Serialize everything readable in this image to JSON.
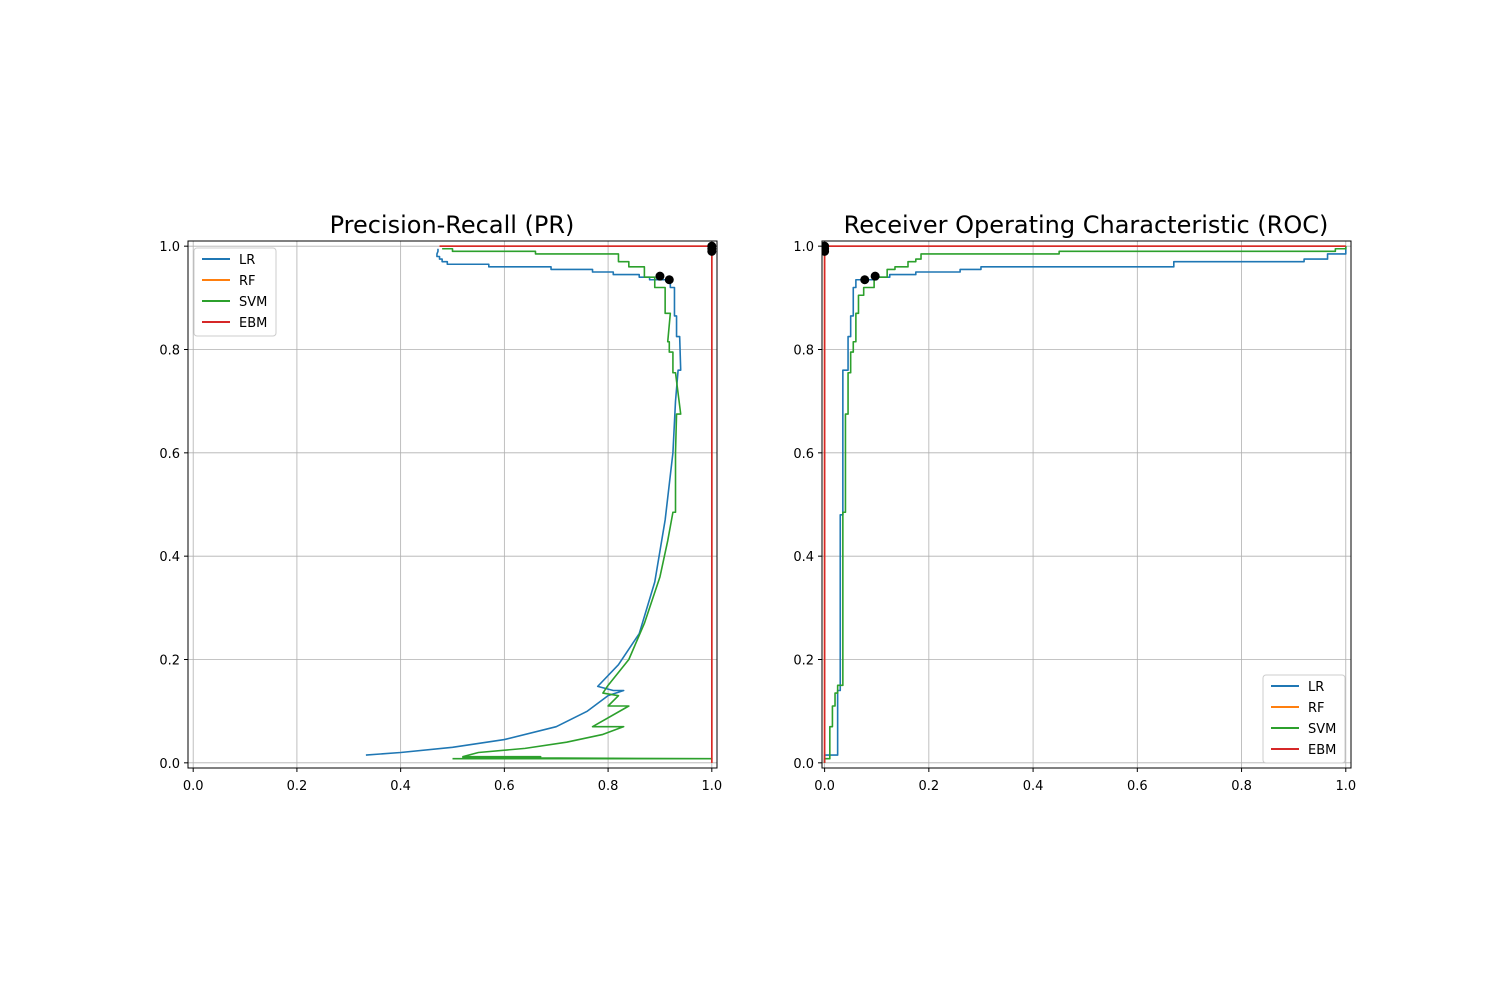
{
  "colors": {
    "LR": "#1f77b4",
    "RF": "#ff7f0e",
    "SVM": "#2ca02c",
    "EBM": "#d62728",
    "grid": "#b0b0b0",
    "marker": "#000000"
  },
  "chart_data": [
    {
      "type": "line",
      "title": "Precision-Recall (PR)",
      "xlabel": "",
      "ylabel": "",
      "xlim": [
        -0.01,
        1.01
      ],
      "ylim": [
        -0.01,
        1.01
      ],
      "xticks": [
        "0.0",
        "0.2",
        "0.4",
        "0.6",
        "0.8",
        "1.0"
      ],
      "yticks": [
        "0.0",
        "0.2",
        "0.4",
        "0.6",
        "0.8",
        "1.0"
      ],
      "grid": true,
      "legend": {
        "position": "top-left",
        "entries": [
          "LR",
          "RF",
          "SVM",
          "EBM"
        ]
      },
      "series": [
        {
          "name": "LR",
          "points": [
            [
              0.333,
              0.015
            ],
            [
              0.4,
              0.02
            ],
            [
              0.5,
              0.03
            ],
            [
              0.6,
              0.045
            ],
            [
              0.7,
              0.07
            ],
            [
              0.76,
              0.1
            ],
            [
              0.8,
              0.13
            ],
            [
              0.83,
              0.14
            ],
            [
              0.81,
              0.14
            ],
            [
              0.78,
              0.148
            ],
            [
              0.82,
              0.19
            ],
            [
              0.86,
              0.25
            ],
            [
              0.89,
              0.35
            ],
            [
              0.91,
              0.47
            ],
            [
              0.925,
              0.6
            ],
            [
              0.93,
              0.7
            ],
            [
              0.935,
              0.76
            ],
            [
              0.94,
              0.76
            ],
            [
              0.938,
              0.825
            ],
            [
              0.932,
              0.825
            ],
            [
              0.932,
              0.865
            ],
            [
              0.928,
              0.865
            ],
            [
              0.928,
              0.92
            ],
            [
              0.92,
              0.92
            ],
            [
              0.92,
              0.935
            ],
            [
              0.88,
              0.935
            ],
            [
              0.88,
              0.94
            ],
            [
              0.86,
              0.94
            ],
            [
              0.86,
              0.945
            ],
            [
              0.81,
              0.945
            ],
            [
              0.81,
              0.95
            ],
            [
              0.77,
              0.95
            ],
            [
              0.77,
              0.955
            ],
            [
              0.69,
              0.955
            ],
            [
              0.69,
              0.96
            ],
            [
              0.57,
              0.96
            ],
            [
              0.57,
              0.965
            ],
            [
              0.49,
              0.965
            ],
            [
              0.49,
              0.97
            ],
            [
              0.48,
              0.97
            ],
            [
              0.48,
              0.975
            ],
            [
              0.475,
              0.975
            ],
            [
              0.475,
              0.98
            ],
            [
              0.47,
              0.98
            ],
            [
              0.47,
              0.985
            ],
            [
              0.472,
              0.99
            ],
            [
              0.472,
              0.995
            ]
          ]
        },
        {
          "name": "RF",
          "points": [
            [
              0.475,
              1.0
            ],
            [
              1.0,
              1.0
            ],
            [
              1.0,
              0.0
            ]
          ]
        },
        {
          "name": "SVM",
          "points": [
            [
              0.5,
              0.008
            ],
            [
              1.0,
              0.008
            ],
            [
              0.52,
              0.01
            ],
            [
              0.67,
              0.012
            ],
            [
              0.52,
              0.012
            ],
            [
              0.55,
              0.02
            ],
            [
              0.64,
              0.028
            ],
            [
              0.72,
              0.04
            ],
            [
              0.79,
              0.055
            ],
            [
              0.83,
              0.07
            ],
            [
              0.77,
              0.07
            ],
            [
              0.84,
              0.11
            ],
            [
              0.8,
              0.11
            ],
            [
              0.82,
              0.13
            ],
            [
              0.79,
              0.135
            ],
            [
              0.8,
              0.15
            ],
            [
              0.84,
              0.2
            ],
            [
              0.87,
              0.27
            ],
            [
              0.9,
              0.36
            ],
            [
              0.915,
              0.43
            ],
            [
              0.925,
              0.485
            ],
            [
              0.93,
              0.485
            ],
            [
              0.93,
              0.6
            ],
            [
              0.932,
              0.675
            ],
            [
              0.94,
              0.675
            ],
            [
              0.93,
              0.755
            ],
            [
              0.925,
              0.755
            ],
            [
              0.925,
              0.795
            ],
            [
              0.918,
              0.795
            ],
            [
              0.918,
              0.815
            ],
            [
              0.915,
              0.815
            ],
            [
              0.92,
              0.87
            ],
            [
              0.91,
              0.87
            ],
            [
              0.91,
              0.92
            ],
            [
              0.89,
              0.92
            ],
            [
              0.89,
              0.94
            ],
            [
              0.87,
              0.94
            ],
            [
              0.87,
              0.96
            ],
            [
              0.84,
              0.96
            ],
            [
              0.84,
              0.97
            ],
            [
              0.82,
              0.97
            ],
            [
              0.82,
              0.985
            ],
            [
              0.66,
              0.985
            ],
            [
              0.66,
              0.99
            ],
            [
              0.5,
              0.99
            ],
            [
              0.5,
              0.995
            ],
            [
              0.48,
              0.995
            ]
          ]
        },
        {
          "name": "EBM",
          "points": [
            [
              0.475,
              1.0
            ],
            [
              1.0,
              1.0
            ],
            [
              1.0,
              0.0
            ]
          ]
        }
      ],
      "markers": [
        [
          0.9,
          0.942
        ],
        [
          0.918,
          0.935
        ],
        [
          1.0,
          1.0
        ],
        [
          1.0,
          0.995
        ],
        [
          1.0,
          0.99
        ]
      ]
    },
    {
      "type": "line",
      "title": "Receiver Operating Characteristic (ROC)",
      "xlabel": "",
      "ylabel": "",
      "xlim": [
        -0.005,
        1.01
      ],
      "ylim": [
        -0.01,
        1.01
      ],
      "xticks": [
        "0.0",
        "0.2",
        "0.4",
        "0.6",
        "0.8",
        "1.0"
      ],
      "yticks": [
        "0.0",
        "0.2",
        "0.4",
        "0.6",
        "0.8",
        "1.0"
      ],
      "grid": true,
      "legend": {
        "position": "bottom-right",
        "entries": [
          "LR",
          "RF",
          "SVM",
          "EBM"
        ]
      },
      "series": [
        {
          "name": "LR",
          "points": [
            [
              0.0,
              0.0
            ],
            [
              0.0,
              0.015
            ],
            [
              0.025,
              0.015
            ],
            [
              0.025,
              0.14
            ],
            [
              0.03,
              0.14
            ],
            [
              0.03,
              0.48
            ],
            [
              0.035,
              0.48
            ],
            [
              0.035,
              0.76
            ],
            [
              0.045,
              0.76
            ],
            [
              0.045,
              0.825
            ],
            [
              0.05,
              0.825
            ],
            [
              0.05,
              0.865
            ],
            [
              0.055,
              0.865
            ],
            [
              0.055,
              0.92
            ],
            [
              0.06,
              0.92
            ],
            [
              0.06,
              0.935
            ],
            [
              0.1,
              0.935
            ],
            [
              0.1,
              0.94
            ],
            [
              0.125,
              0.94
            ],
            [
              0.125,
              0.945
            ],
            [
              0.175,
              0.945
            ],
            [
              0.175,
              0.95
            ],
            [
              0.26,
              0.95
            ],
            [
              0.26,
              0.955
            ],
            [
              0.3,
              0.955
            ],
            [
              0.3,
              0.96
            ],
            [
              0.67,
              0.96
            ],
            [
              0.67,
              0.97
            ],
            [
              0.92,
              0.97
            ],
            [
              0.92,
              0.975
            ],
            [
              0.965,
              0.975
            ],
            [
              0.965,
              0.985
            ],
            [
              1.0,
              0.985
            ],
            [
              1.0,
              1.0
            ]
          ]
        },
        {
          "name": "RF",
          "points": [
            [
              0.0,
              0.0
            ],
            [
              0.0,
              1.0
            ],
            [
              1.0,
              1.0
            ]
          ]
        },
        {
          "name": "SVM",
          "points": [
            [
              0.0,
              0.0
            ],
            [
              0.0,
              0.008
            ],
            [
              0.01,
              0.008
            ],
            [
              0.01,
              0.07
            ],
            [
              0.015,
              0.07
            ],
            [
              0.015,
              0.11
            ],
            [
              0.02,
              0.11
            ],
            [
              0.02,
              0.135
            ],
            [
              0.025,
              0.135
            ],
            [
              0.025,
              0.15
            ],
            [
              0.035,
              0.15
            ],
            [
              0.035,
              0.485
            ],
            [
              0.04,
              0.485
            ],
            [
              0.04,
              0.675
            ],
            [
              0.045,
              0.675
            ],
            [
              0.045,
              0.755
            ],
            [
              0.05,
              0.755
            ],
            [
              0.05,
              0.795
            ],
            [
              0.055,
              0.795
            ],
            [
              0.055,
              0.815
            ],
            [
              0.06,
              0.815
            ],
            [
              0.06,
              0.87
            ],
            [
              0.065,
              0.87
            ],
            [
              0.065,
              0.905
            ],
            [
              0.075,
              0.905
            ],
            [
              0.075,
              0.92
            ],
            [
              0.095,
              0.92
            ],
            [
              0.095,
              0.94
            ],
            [
              0.12,
              0.94
            ],
            [
              0.12,
              0.955
            ],
            [
              0.135,
              0.955
            ],
            [
              0.135,
              0.96
            ],
            [
              0.16,
              0.96
            ],
            [
              0.16,
              0.97
            ],
            [
              0.175,
              0.97
            ],
            [
              0.175,
              0.975
            ],
            [
              0.185,
              0.975
            ],
            [
              0.185,
              0.985
            ],
            [
              0.45,
              0.985
            ],
            [
              0.45,
              0.99
            ],
            [
              0.98,
              0.99
            ],
            [
              0.98,
              0.995
            ],
            [
              1.0,
              0.995
            ],
            [
              1.0,
              1.0
            ]
          ]
        },
        {
          "name": "EBM",
          "points": [
            [
              0.0,
              0.0
            ],
            [
              0.0,
              1.0
            ],
            [
              1.0,
              1.0
            ]
          ]
        }
      ],
      "markers": [
        [
          0.077,
          0.935
        ],
        [
          0.097,
          0.942
        ],
        [
          0.0,
          1.0
        ],
        [
          0.0,
          0.995
        ],
        [
          0.0,
          0.99
        ]
      ]
    }
  ]
}
